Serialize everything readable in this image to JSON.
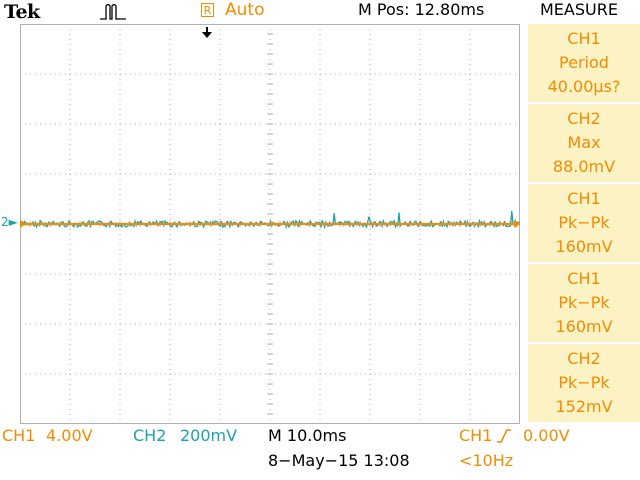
{
  "header": {
    "brand": "Tek",
    "trigger_state_letter": "R",
    "trigger_status": "Auto",
    "main_position": "M Pos: 12.80ms",
    "menu_title": "MEASURE"
  },
  "measurements": [
    {
      "channel": "CH1",
      "type": "Period",
      "value": "40.00μs?"
    },
    {
      "channel": "CH2",
      "type": "Max",
      "value": "88.0mV"
    },
    {
      "channel": "CH1",
      "type": "Pk−Pk",
      "value": "160mV"
    },
    {
      "channel": "CH1",
      "type": "Pk−Pk",
      "value": "160mV"
    },
    {
      "channel": "CH2",
      "type": "Pk−Pk",
      "value": "152mV"
    }
  ],
  "screen": {
    "ch2_marker": "2",
    "divisions_x": 10,
    "divisions_y": 8
  },
  "footer": {
    "ch1_label": "CH1",
    "ch1_scale": "4.00V",
    "ch2_label": "CH2",
    "ch2_scale": "200mV",
    "timebase": "M 10.0ms",
    "date_time": "8−May−15 13:08",
    "trigger_source": "CH1",
    "trigger_level": "0.00V",
    "trigger_freq": "<10Hz"
  },
  "colors": {
    "ch1": "#f28c00",
    "ch2": "#1aa3a8",
    "grid": "#b0b0b0",
    "menu_bg": "#fdf2c4"
  },
  "icons": [
    "acquire-run-icon",
    "trigger-position-arrow-icon",
    "trigger-slope-rising-icon"
  ]
}
